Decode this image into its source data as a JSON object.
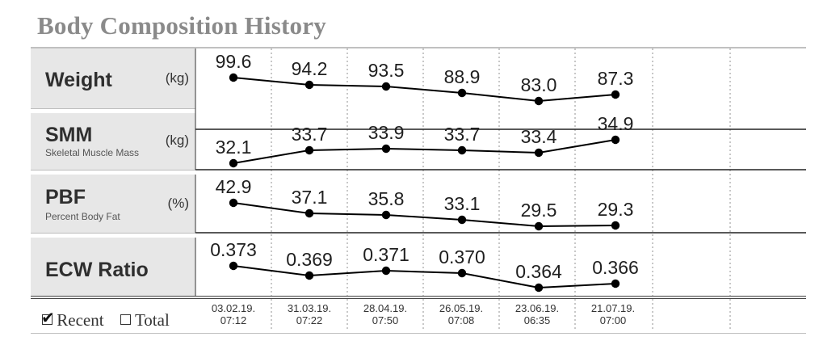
{
  "header": {
    "title": "Body Composition History"
  },
  "chart_data": {
    "type": "line",
    "x": [
      "03.02.19. 07:12",
      "31.03.19. 07:22",
      "28.04.19. 07:50",
      "26.05.19. 07:08",
      "23.06.19. 06:35",
      "21.07.19. 07:00"
    ],
    "dates": [
      {
        "date": "03.02.19.",
        "time": "07:12"
      },
      {
        "date": "31.03.19.",
        "time": "07:22"
      },
      {
        "date": "28.04.19.",
        "time": "07:50"
      },
      {
        "date": "26.05.19.",
        "time": "07:08"
      },
      {
        "date": "23.06.19.",
        "time": "06:35"
      },
      {
        "date": "21.07.19.",
        "time": "07:00"
      }
    ],
    "series": [
      {
        "name": "Weight",
        "subtitle": "",
        "unit": "(kg)",
        "values": [
          99.6,
          94.2,
          93.5,
          88.9,
          83.0,
          87.3
        ],
        "labels": [
          "99.6",
          "94.2",
          "93.5",
          "88.9",
          "83.0",
          "87.3"
        ]
      },
      {
        "name": "SMM",
        "subtitle": "Skeletal Muscle Mass",
        "unit": "(kg)",
        "values": [
          32.1,
          33.7,
          33.9,
          33.7,
          33.4,
          34.9
        ],
        "labels": [
          "32.1",
          "33.7",
          "33.9",
          "33.7",
          "33.4",
          "34.9"
        ]
      },
      {
        "name": "PBF",
        "subtitle": "Percent Body Fat",
        "unit": "(%)",
        "values": [
          42.9,
          37.1,
          35.8,
          33.1,
          29.5,
          29.3
        ],
        "labels": [
          "42.9",
          "37.1",
          "35.8",
          "33.1",
          "29.5",
          "29.3"
        ]
      },
      {
        "name": "ECW Ratio",
        "subtitle": "",
        "unit": "",
        "values": [
          0.373,
          0.369,
          0.371,
          0.37,
          0.364,
          0.366
        ],
        "labels": [
          "0.373",
          "0.369",
          "0.371",
          "0.370",
          "0.364",
          "0.366"
        ]
      }
    ],
    "legend": {
      "recent_label": "Recent",
      "total_label": "Total",
      "recent_checked": true,
      "total_checked": false
    },
    "colors": {
      "line": "#000000",
      "label_bg": "#e7e7e7",
      "title": "#8a8a8a",
      "grid": "#b5b5b5"
    }
  }
}
